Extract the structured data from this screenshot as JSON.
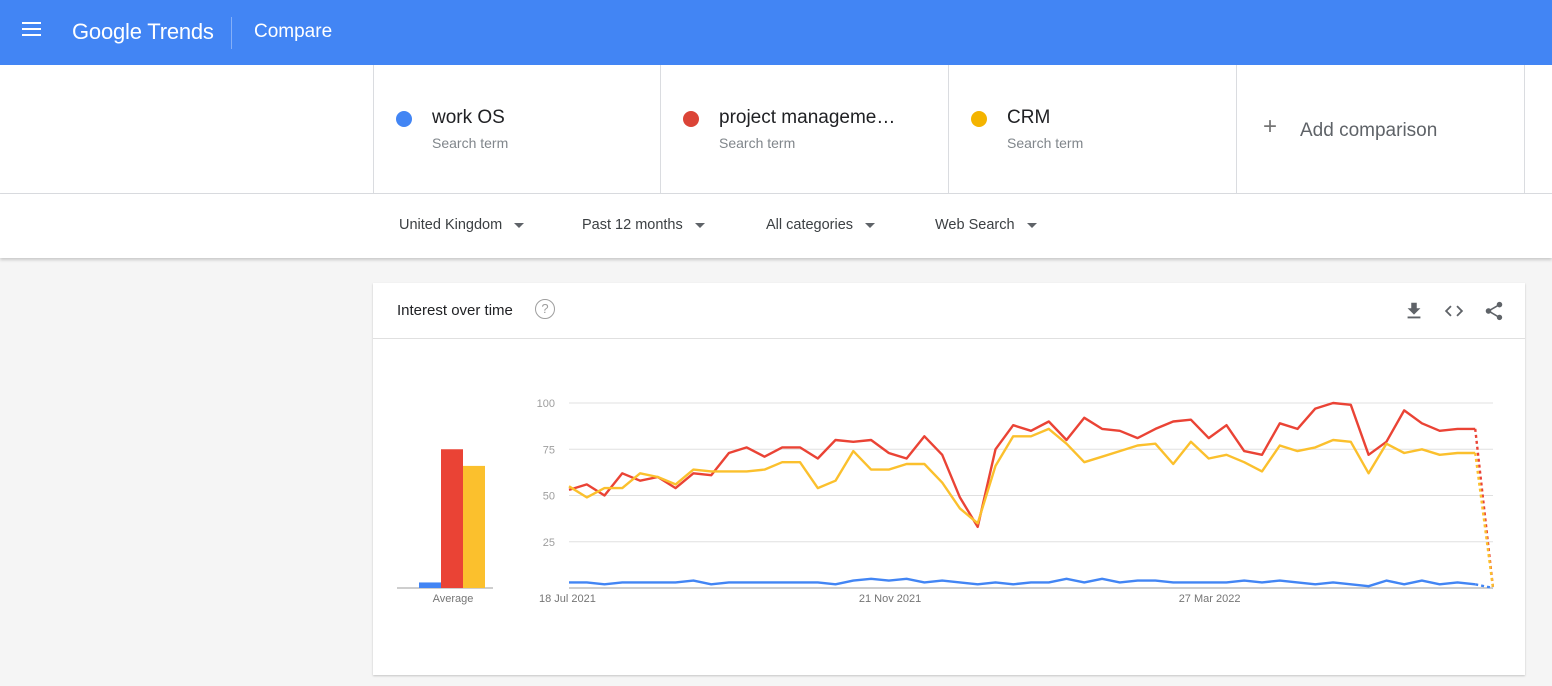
{
  "app": {
    "logo_google": "Google",
    "logo_trends": "Trends",
    "page_title": "Compare"
  },
  "terms": [
    {
      "name": "work OS",
      "subtitle": "Search term",
      "color": "#4285f4"
    },
    {
      "name": "project manageme…",
      "subtitle": "Search term",
      "color": "#db4437"
    },
    {
      "name": "CRM",
      "subtitle": "Search term",
      "color": "#f4b400"
    }
  ],
  "add_comparison": {
    "label": "Add comparison"
  },
  "filters": {
    "region": "United Kingdom",
    "time": "Past 12 months",
    "category": "All categories",
    "search_type": "Web Search"
  },
  "card": {
    "title": "Interest over time",
    "help_glyph": "?"
  },
  "chart_data": [
    {
      "type": "bar",
      "categories": [
        "Average"
      ],
      "series": [
        {
          "name": "work OS",
          "values": [
            3
          ],
          "color": "#4285f4"
        },
        {
          "name": "project manageme…",
          "values": [
            75
          ],
          "color": "#ea4335"
        },
        {
          "name": "CRM",
          "values": [
            66
          ],
          "color": "#fbc02d"
        }
      ],
      "xlabel": "Average",
      "ylim": [
        0,
        100
      ]
    },
    {
      "type": "line",
      "ylim": [
        0,
        100
      ],
      "y_ticks": [
        25,
        50,
        75,
        100
      ],
      "x_tick_labels": [
        {
          "label": "18 Jul 2021",
          "index": 0
        },
        {
          "label": "21 Nov 2021",
          "index": 18
        },
        {
          "label": "27 Mar 2022",
          "index": 36
        }
      ],
      "num_points": 53,
      "partial_last_point": true,
      "grid": true,
      "series": [
        {
          "name": "work OS",
          "color": "#4285f4",
          "values": [
            3,
            3,
            2,
            3,
            3,
            3,
            3,
            4,
            2,
            3,
            3,
            3,
            3,
            3,
            3,
            2,
            4,
            5,
            4,
            5,
            3,
            4,
            3,
            2,
            3,
            2,
            3,
            3,
            5,
            3,
            5,
            3,
            4,
            4,
            3,
            3,
            3,
            3,
            4,
            3,
            4,
            3,
            2,
            3,
            2,
            1,
            4,
            2,
            4,
            2,
            3,
            2,
            0
          ]
        },
        {
          "name": "project manageme…",
          "color": "#ea4335",
          "values": [
            53,
            56,
            50,
            62,
            58,
            60,
            54,
            62,
            61,
            73,
            76,
            71,
            76,
            76,
            70,
            80,
            79,
            80,
            73,
            70,
            82,
            72,
            49,
            33,
            75,
            88,
            85,
            90,
            80,
            92,
            86,
            85,
            81,
            86,
            90,
            91,
            81,
            88,
            74,
            72,
            89,
            86,
            97,
            100,
            99,
            72,
            79,
            96,
            89,
            85,
            86,
            86,
            0
          ]
        },
        {
          "name": "CRM",
          "color": "#fbc02d",
          "values": [
            55,
            49,
            54,
            54,
            62,
            60,
            56,
            64,
            63,
            63,
            63,
            64,
            68,
            68,
            54,
            58,
            74,
            64,
            64,
            67,
            67,
            57,
            43,
            35,
            66,
            82,
            82,
            86,
            78,
            68,
            71,
            74,
            77,
            78,
            67,
            79,
            70,
            72,
            68,
            63,
            77,
            74,
            76,
            80,
            79,
            62,
            78,
            73,
            75,
            72,
            73,
            73,
            0
          ]
        }
      ]
    }
  ]
}
